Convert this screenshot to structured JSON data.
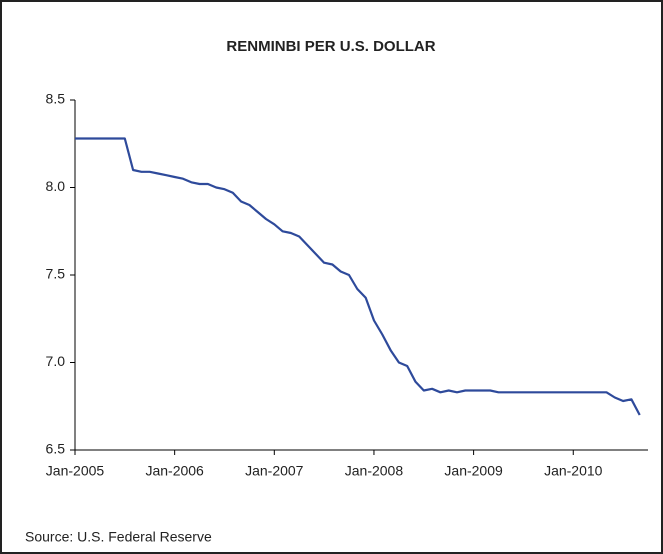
{
  "chart_data": {
    "type": "line",
    "title": "RENMINBI PER U.S. DOLLAR",
    "source": "Source: U.S. Federal Reserve",
    "x": [
      "2005-01",
      "2005-02",
      "2005-03",
      "2005-04",
      "2005-05",
      "2005-06",
      "2005-07",
      "2005-08",
      "2005-09",
      "2005-10",
      "2005-11",
      "2005-12",
      "2006-01",
      "2006-02",
      "2006-03",
      "2006-04",
      "2006-05",
      "2006-06",
      "2006-07",
      "2006-08",
      "2006-09",
      "2006-10",
      "2006-11",
      "2006-12",
      "2007-01",
      "2007-02",
      "2007-03",
      "2007-04",
      "2007-05",
      "2007-06",
      "2007-07",
      "2007-08",
      "2007-09",
      "2007-10",
      "2007-11",
      "2007-12",
      "2008-01",
      "2008-02",
      "2008-03",
      "2008-04",
      "2008-05",
      "2008-06",
      "2008-07",
      "2008-08",
      "2008-09",
      "2008-10",
      "2008-11",
      "2008-12",
      "2009-01",
      "2009-02",
      "2009-03",
      "2009-04",
      "2009-05",
      "2009-06",
      "2009-07",
      "2009-08",
      "2009-09",
      "2009-10",
      "2009-11",
      "2009-12",
      "2010-01",
      "2010-02",
      "2010-03",
      "2010-04",
      "2010-05",
      "2010-06",
      "2010-07",
      "2010-08",
      "2010-09"
    ],
    "series": [
      {
        "name": "Renminbi per U.S. dollar",
        "color": "#2e4a9b",
        "values": [
          8.28,
          8.28,
          8.28,
          8.28,
          8.28,
          8.28,
          8.28,
          8.1,
          8.09,
          8.09,
          8.08,
          8.07,
          8.06,
          8.05,
          8.03,
          8.02,
          8.02,
          8.0,
          7.99,
          7.97,
          7.92,
          7.9,
          7.86,
          7.82,
          7.79,
          7.75,
          7.74,
          7.72,
          7.67,
          7.62,
          7.57,
          7.56,
          7.52,
          7.5,
          7.42,
          7.37,
          7.24,
          7.16,
          7.07,
          7.0,
          6.98,
          6.89,
          6.84,
          6.85,
          6.83,
          6.84,
          6.83,
          6.84,
          6.84,
          6.84,
          6.84,
          6.83,
          6.83,
          6.83,
          6.83,
          6.83,
          6.83,
          6.83,
          6.83,
          6.83,
          6.83,
          6.83,
          6.83,
          6.83,
          6.83,
          6.8,
          6.78,
          6.79,
          6.7
        ]
      }
    ],
    "xlim": [
      "2005-01",
      "2010-10"
    ],
    "xticks": [
      {
        "value": "2005-01",
        "label": "Jan-2005"
      },
      {
        "value": "2006-01",
        "label": "Jan-2006"
      },
      {
        "value": "2007-01",
        "label": "Jan-2007"
      },
      {
        "value": "2008-01",
        "label": "Jan-2008"
      },
      {
        "value": "2009-01",
        "label": "Jan-2009"
      },
      {
        "value": "2010-01",
        "label": "Jan-2010"
      }
    ],
    "ylim": [
      6.5,
      8.5
    ],
    "yticks": [
      {
        "value": 6.5,
        "label": "6.5"
      },
      {
        "value": 7,
        "label": "7.0"
      },
      {
        "value": 7.5,
        "label": "7.5"
      },
      {
        "value": 8,
        "label": "8.0"
      },
      {
        "value": 8.5,
        "label": "8.5"
      }
    ],
    "grid": false
  }
}
